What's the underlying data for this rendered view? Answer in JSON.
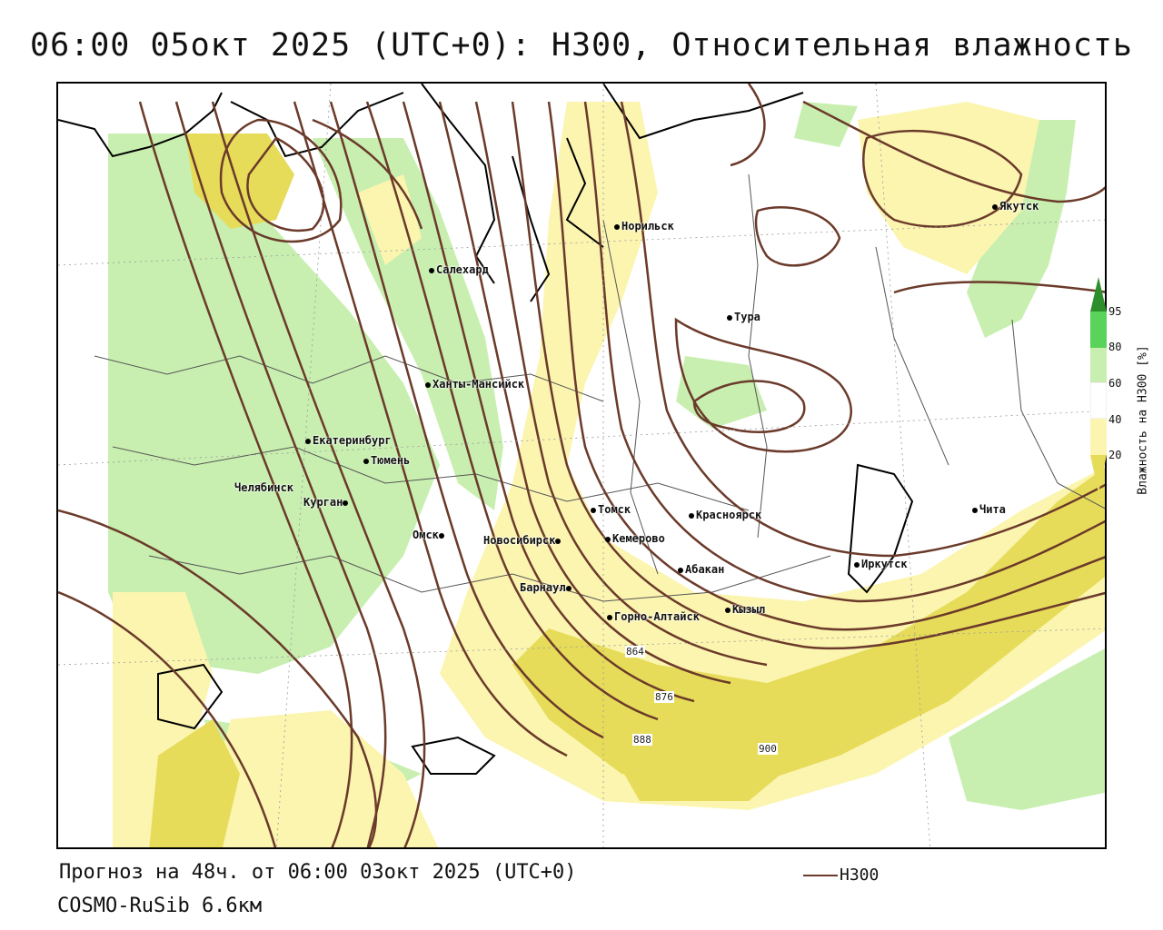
{
  "title": "06:00 05окт 2025 (UTC+0): H300, Относительная влажность",
  "footer": {
    "forecast": "Прогноз на 48ч. от 06:00 03окт 2025 (UTC+0)",
    "model": "COSMO-RuSib 6.6км",
    "legend_label": "H300"
  },
  "colorbar": {
    "title": "Влажность на H300 [%]",
    "ticks": [
      "95",
      "80",
      "60",
      "40",
      "20"
    ]
  },
  "contour_labels": [
    "864",
    "876",
    "888",
    "900"
  ],
  "cities": [
    {
      "name": "Норильск"
    },
    {
      "name": "Якутск"
    },
    {
      "name": "Салехард"
    },
    {
      "name": "Тура"
    },
    {
      "name": "Ханты-Мансийск"
    },
    {
      "name": "Екатеринбург"
    },
    {
      "name": "Тюмень"
    },
    {
      "name": "Челябинск"
    },
    {
      "name": "Курган"
    },
    {
      "name": "Омск"
    },
    {
      "name": "Томск"
    },
    {
      "name": "Красноярск"
    },
    {
      "name": "Новосибирск"
    },
    {
      "name": "Кемерово"
    },
    {
      "name": "Абакан"
    },
    {
      "name": "Барнаул"
    },
    {
      "name": "Горно-Алтайск"
    },
    {
      "name": "Кызыл"
    },
    {
      "name": "Иркутск"
    },
    {
      "name": "Чита"
    }
  ],
  "colors": {
    "contour": "#6b3a2a",
    "humid_light_yellow": "#fbf5b0",
    "humid_yellow": "#e6dc5a",
    "humid_light_green": "#c8efb0",
    "humid_green": "#5ad35a",
    "humid_dark_green": "#2c8f2c"
  }
}
